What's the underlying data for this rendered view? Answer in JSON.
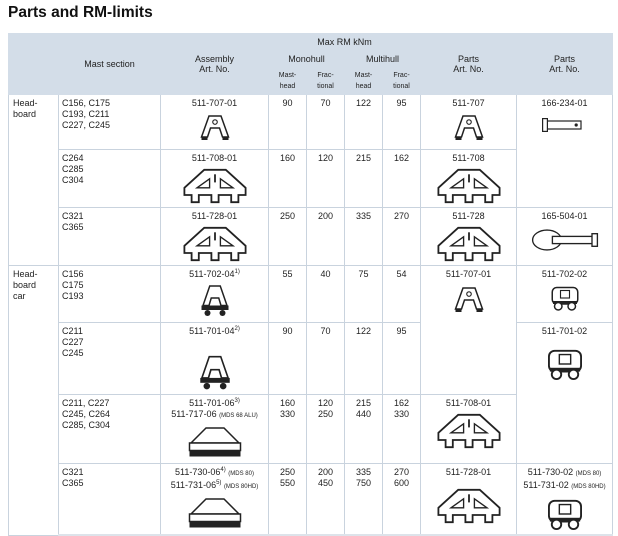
{
  "title": "Parts and RM-limits",
  "header": {
    "mast_section": "Mast section",
    "assembly": "Assembly",
    "art_no": "Art. No.",
    "max_rm": "Max RM kNm",
    "monohull": "Monohull",
    "multihull": "Multihull",
    "mast_head_1": "Mast-",
    "mast_head_2": "head",
    "fractional_1": "Frac-",
    "fractional_2": "tional",
    "parts": "Parts",
    "parts2": "Parts"
  },
  "groups": [
    {
      "label": "Head-\nboard"
    },
    {
      "label": "Head-\nboard\ncar"
    }
  ],
  "rows": [
    {
      "mast": "C156, C175\nC193, C211\nC227, C245",
      "assembly": "511-707-01",
      "mono_mh": "90",
      "mono_fr": "70",
      "multi_mh": "122",
      "multi_fr": "95",
      "parts": "511-707",
      "parts2": "166-234-01"
    },
    {
      "mast": "C264\nC285\nC304",
      "assembly": "511-708-01",
      "mono_mh": "160",
      "mono_fr": "120",
      "multi_mh": "215",
      "multi_fr": "162",
      "parts": "511-708",
      "parts2": ""
    },
    {
      "mast": "C321\nC365",
      "assembly": "511-728-01",
      "mono_mh": "250",
      "mono_fr": "200",
      "multi_mh": "335",
      "multi_fr": "270",
      "parts": "511-728",
      "parts2": "165-504-01"
    },
    {
      "mast": "C156\nC175\nC193",
      "assembly": "511-702-04",
      "assembly_note": "1)",
      "mono_mh": "55",
      "mono_fr": "40",
      "multi_mh": "75",
      "multi_fr": "54",
      "parts": "511-707-01",
      "parts2": "511-702-02"
    },
    {
      "mast": "C211\nC227\nC245",
      "assembly": "511-701-04",
      "assembly_note": "2)",
      "mono_mh": "90",
      "mono_fr": "70",
      "multi_mh": "122",
      "multi_fr": "95",
      "parts2": "511-701-02"
    },
    {
      "mast": "C211, C227\nC245, C264\nC285, C304",
      "assembly": "511-701-06",
      "assembly_note": "3)",
      "assembly_b": "511-717-06",
      "assembly_b_note": "(MDS 68 ALU)",
      "mono_mh": "160\n330",
      "mono_fr": "120\n250",
      "multi_mh": "215\n440",
      "multi_fr": "162\n330",
      "parts": "511-708-01"
    },
    {
      "mast": "C321\nC365",
      "assembly": "511-730-06",
      "assembly_note": "4)",
      "assembly_note2": "(MDS 80)",
      "assembly_b": "511-731-06",
      "assembly_b_note0": "5)",
      "assembly_b_note": "(MDS 80HD)",
      "mono_mh": "250\n550",
      "mono_fr": "200\n450",
      "multi_mh": "335\n750",
      "multi_fr": "270\n600",
      "parts": "511-728-01",
      "parts2": "511-730-02",
      "parts2_note": "(MDS 80)",
      "parts2_b": "511-731-02",
      "parts2_b_note": "(MDS 80HD)"
    }
  ]
}
